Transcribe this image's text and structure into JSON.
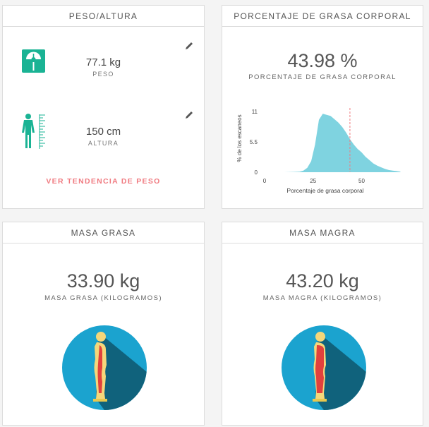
{
  "peso_card": {
    "title": "PESO/ALTURA",
    "weight_value": "77.1 kg",
    "weight_label": "PESO",
    "height_value": "150 cm",
    "height_label": "ALTURA",
    "trend_link": "VER TENDENCIA DE PESO",
    "scale_icon": "scale-icon",
    "body_icon": "body-height-icon",
    "edit_icon": "pencil-icon"
  },
  "grasa_card": {
    "title": "PORCENTAJE DE GRASA CORPORAL",
    "value": "43.98 %",
    "label": "PORCENTAJE DE GRASA CORPORAL"
  },
  "masa_grasa_card": {
    "title": "MASA GRASA",
    "value": "33.90 kg",
    "label": "MASA GRASA (KILOGRAMOS)"
  },
  "masa_magra_card": {
    "title": "MASA MAGRA",
    "value": "43.20 kg",
    "label": "MASA MAGRA (KILOGRAMOS)"
  },
  "colors": {
    "accent": "#1ab394",
    "link": "#f07a80",
    "hist_fill": "#7fd3e0",
    "marker": "#f07a80",
    "circle": "#1ba3cf",
    "shadow": "#10627c"
  },
  "chart_data": {
    "type": "area",
    "xlabel": "Porcentaje de grasa corporal",
    "ylabel": "% de los escaneos",
    "xticks": [
      0,
      25,
      50
    ],
    "yticks": [
      0,
      5.5,
      11
    ],
    "xlim": [
      0,
      72
    ],
    "ylim": [
      0,
      11
    ],
    "marker_x": 43.98,
    "x": [
      0,
      10,
      15,
      18,
      20,
      22,
      24,
      26,
      28,
      30,
      32,
      34,
      36,
      38,
      40,
      42,
      44,
      46,
      48,
      50,
      52,
      54,
      56,
      58,
      60,
      62,
      64,
      66,
      68,
      70
    ],
    "y": [
      0,
      0,
      0.05,
      0.1,
      0.3,
      0.8,
      2.0,
      5.0,
      9.5,
      10.6,
      10.4,
      10.2,
      9.6,
      9.0,
      8.2,
      7.2,
      6.0,
      5.0,
      4.2,
      3.6,
      2.8,
      2.2,
      1.6,
      1.2,
      0.9,
      0.6,
      0.4,
      0.3,
      0.2,
      0.1
    ]
  }
}
